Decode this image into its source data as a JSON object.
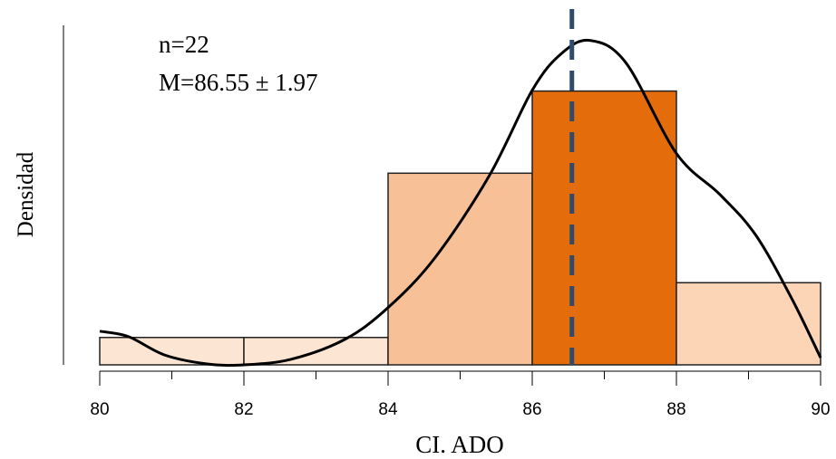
{
  "chart_data": {
    "type": "histogram",
    "bins": [
      80,
      82,
      84,
      86,
      88,
      90
    ],
    "counts": [
      1,
      1,
      7,
      10,
      3
    ],
    "colors": [
      "#fde5d4",
      "#fde5d4",
      "#f8c096",
      "#e46c0a",
      "#fbd5b5"
    ],
    "xlim": [
      80,
      90
    ],
    "xticks": [
      80,
      82,
      84,
      86,
      88,
      90
    ],
    "minor_xticks": [
      81,
      83,
      85,
      87,
      89
    ],
    "ylim": [
      0,
      12.4
    ],
    "xlabel": "CI. ADO",
    "ylabel": "Densidad",
    "annotations": [
      "n=22",
      "M=86.55 ± 1.97"
    ],
    "mean_line": {
      "value": 86.55,
      "color": "#2f4b6c"
    },
    "density_curve": {
      "color": "#000000",
      "x": [
        80,
        80.4,
        80.9,
        81.5,
        82,
        82.65,
        83.4,
        84,
        84.65,
        85.4,
        86,
        86.4,
        86.8,
        87.3,
        88,
        88.6,
        89.1,
        89.6,
        90
      ],
      "values": [
        1.23,
        1.03,
        0.36,
        0.03,
        0,
        0.2,
        0.93,
        2.09,
        3.91,
        6.89,
        10.03,
        11.36,
        11.85,
        11.03,
        7.72,
        6.23,
        4.74,
        2.42,
        0.26
      ]
    }
  }
}
